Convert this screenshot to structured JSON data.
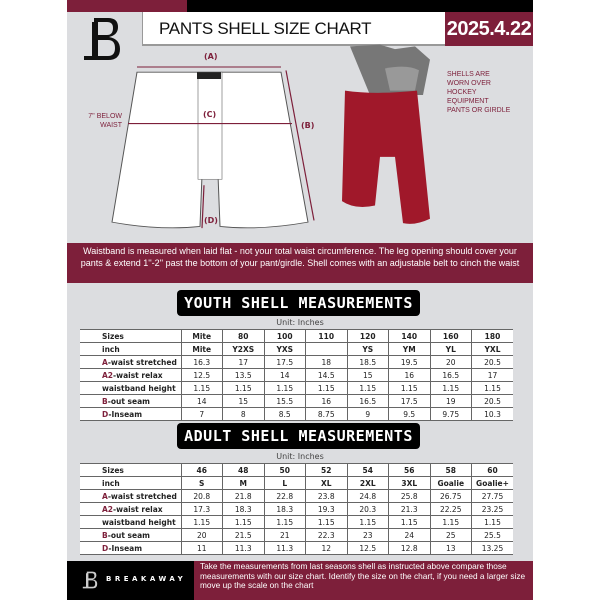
{
  "header": {
    "title": "PANTS SHELL SIZE CHART",
    "date": "2025.4.22"
  },
  "diagram": {
    "label_a": "(A)",
    "label_b": "(B)",
    "label_c": "(C)",
    "label_d": "(D)",
    "below_waist_note": "7'' BELOW WAIST",
    "worn_note": "SHELLS ARE WORN OVER HOCKEY EQUIPMENT PANTS OR GIRDLE"
  },
  "colors": {
    "brand": "#7d1f3a",
    "panel": "#dcdde0",
    "pants": "#a0182a"
  },
  "info": "Waistband is measured when laid flat - not your total waist circumference. The leg opening should cover your pants & extend 1''-2'' past the bottom of your pant/girdle. Shell comes with an adjustable belt to cinch the waist",
  "youth": {
    "title": "YOUTH SHELL MEASUREMENTS",
    "unit": "Unit: Inches",
    "rows": [
      {
        "p": "",
        "l": "Sizes",
        "v": [
          "Mite",
          "80",
          "100",
          "110",
          "120",
          "140",
          "160",
          "180"
        ]
      },
      {
        "p": "",
        "l": "inch",
        "v": [
          "Mite",
          "Y2XS",
          "YXS",
          "",
          "YS",
          "YM",
          "YL",
          "YXL"
        ]
      },
      {
        "p": "A",
        "l": "-waist stretched",
        "v": [
          "16.3",
          "17",
          "17.5",
          "18",
          "18.5",
          "19.5",
          "20",
          "20.5"
        ]
      },
      {
        "p": "A2",
        "l": "-waist relax",
        "v": [
          "12.5",
          "13.5",
          "14",
          "14.5",
          "15",
          "16",
          "16.5",
          "17"
        ]
      },
      {
        "p": "",
        "l": "waistband height",
        "v": [
          "1.15",
          "1.15",
          "1.15",
          "1.15",
          "1.15",
          "1.15",
          "1.15",
          "1.15"
        ]
      },
      {
        "p": "B",
        "l": "-out seam",
        "v": [
          "14",
          "15",
          "15.5",
          "16",
          "16.5",
          "17.5",
          "19",
          "20.5"
        ]
      },
      {
        "p": "D",
        "l": "-Inseam",
        "v": [
          "7",
          "8",
          "8.5",
          "8.75",
          "9",
          "9.5",
          "9.75",
          "10.3"
        ]
      }
    ]
  },
  "adult": {
    "title": "ADULT SHELL MEASUREMENTS",
    "unit": "Unit: Inches",
    "rows": [
      {
        "p": "",
        "l": "Sizes",
        "v": [
          "46",
          "48",
          "50",
          "52",
          "54",
          "56",
          "58",
          "60"
        ]
      },
      {
        "p": "",
        "l": "inch",
        "v": [
          "S",
          "M",
          "L",
          "XL",
          "2XL",
          "3XL",
          "Goalie",
          "Goalie+"
        ]
      },
      {
        "p": "A",
        "l": "-waist stretched",
        "v": [
          "20.8",
          "21.8",
          "22.8",
          "23.8",
          "24.8",
          "25.8",
          "26.75",
          "27.75"
        ]
      },
      {
        "p": "A2",
        "l": "-waist relax",
        "v": [
          "17.3",
          "18.3",
          "18.3",
          "19.3",
          "20.3",
          "21.3",
          "22.25",
          "23.25"
        ]
      },
      {
        "p": "",
        "l": "waistband height",
        "v": [
          "1.15",
          "1.15",
          "1.15",
          "1.15",
          "1.15",
          "1.15",
          "1.15",
          "1.15"
        ]
      },
      {
        "p": "B",
        "l": "-out seam",
        "v": [
          "20",
          "21.5",
          "21",
          "22.3",
          "23",
          "24",
          "25",
          "25.5"
        ]
      },
      {
        "p": "D",
        "l": "-Inseam",
        "v": [
          "11",
          "11.3",
          "11.3",
          "12",
          "12.5",
          "12.8",
          "13",
          "13.25"
        ]
      }
    ]
  },
  "footer": {
    "brand": "BREAKAWAY",
    "text": "Take the measurements from last seasons shell as instructed above compare those measurements  with our size chart. Identify the size on the chart, if you need a larger size move up the scale on the chart"
  }
}
